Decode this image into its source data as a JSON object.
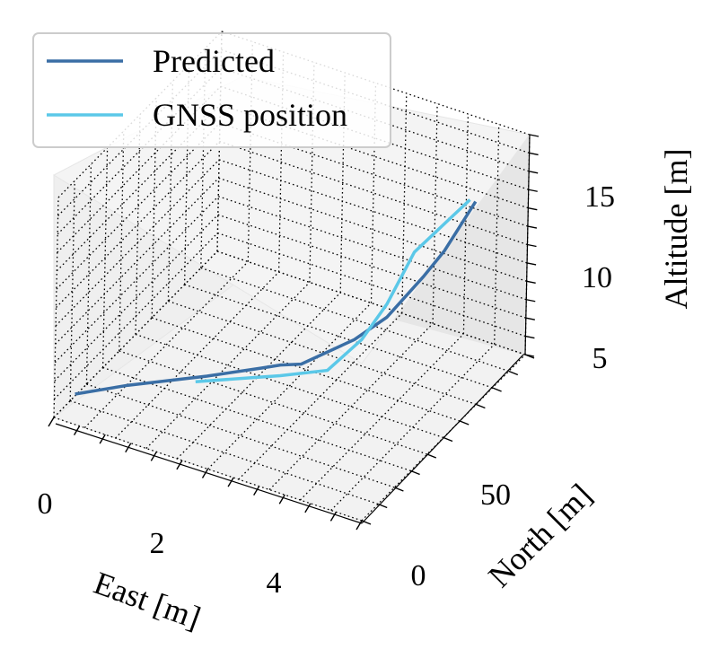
{
  "chart_data": {
    "type": "line3d",
    "xlabel": "East [m]",
    "ylabel": "North [m]",
    "zlabel": "Altitude [m]",
    "x_ticks": [
      0,
      2,
      4
    ],
    "y_ticks": [
      0,
      50
    ],
    "z_ticks": [
      5,
      10,
      15
    ],
    "xlim": [
      0,
      5.5
    ],
    "ylim": [
      -5,
      80
    ],
    "zlim": [
      2.5,
      19
    ],
    "grid": true,
    "grid_style": "dotted",
    "legend_position": "top-left",
    "series": [
      {
        "name": "Predicted",
        "color": "#3a6ea5",
        "x": [
          0.2,
          1.0,
          2.2,
          3.0,
          3.3,
          3.6,
          4.3,
          4.7,
          5.0,
          5.2,
          5.4
        ],
        "y": [
          0,
          4,
          10,
          15,
          16,
          18,
          25,
          30,
          40,
          45,
          55
        ],
        "z": [
          3.8,
          5.0,
          6.5,
          7.5,
          8.0,
          8.2,
          10.0,
          11.5,
          13.5,
          15.0,
          17.5
        ]
      },
      {
        "name": "GNSS position",
        "color": "#5bc8e8",
        "x": [
          2.0,
          3.3,
          4.0,
          4.4,
          4.7,
          4.9,
          5.3
        ],
        "y": [
          10,
          16,
          20,
          26,
          30,
          38,
          55
        ],
        "z": [
          5.8,
          7.2,
          8.0,
          10.0,
          12.5,
          15.5,
          17.5
        ]
      }
    ]
  },
  "legend_icons": {
    "predicted": "line-swatch",
    "gnss": "line-swatch"
  }
}
